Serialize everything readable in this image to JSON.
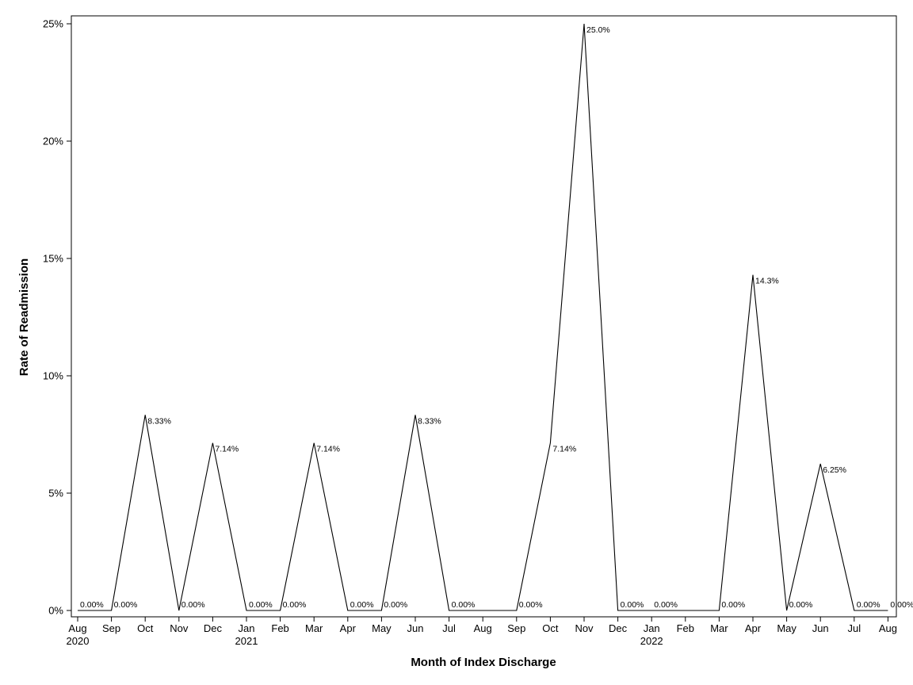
{
  "chart_data": {
    "type": "line",
    "title": "",
    "xlabel": "Month of Index Discharge",
    "ylabel": "Rate of Readmission",
    "ylim": [
      0,
      25
    ],
    "grid": false,
    "legend": "none",
    "line_color": "#000000",
    "x": [
      "Aug 2020",
      "Sep 2020",
      "Oct 2020",
      "Nov 2020",
      "Dec 2020",
      "Jan 2021",
      "Feb 2021",
      "Mar 2021",
      "Apr 2021",
      "May 2021",
      "Jun 2021",
      "Jul 2021",
      "Aug 2021",
      "Sep 2021",
      "Oct 2021",
      "Nov 2021",
      "Dec 2021",
      "Jan 2022",
      "Feb 2022",
      "Mar 2022",
      "Apr 2022",
      "May 2022",
      "Jun 2022",
      "Jul 2022",
      "Aug 2022"
    ],
    "x_tick_labels": [
      {
        "month": "Aug",
        "year": "2020"
      },
      {
        "month": "Sep",
        "year": ""
      },
      {
        "month": "Oct",
        "year": ""
      },
      {
        "month": "Nov",
        "year": ""
      },
      {
        "month": "Dec",
        "year": ""
      },
      {
        "month": "Jan",
        "year": "2021"
      },
      {
        "month": "Feb",
        "year": ""
      },
      {
        "month": "Mar",
        "year": ""
      },
      {
        "month": "Apr",
        "year": ""
      },
      {
        "month": "May",
        "year": ""
      },
      {
        "month": "Jun",
        "year": ""
      },
      {
        "month": "Jul",
        "year": ""
      },
      {
        "month": "Aug",
        "year": ""
      },
      {
        "month": "Sep",
        "year": ""
      },
      {
        "month": "Oct",
        "year": ""
      },
      {
        "month": "Nov",
        "year": ""
      },
      {
        "month": "Dec",
        "year": ""
      },
      {
        "month": "Jan",
        "year": "2022"
      },
      {
        "month": "Feb",
        "year": ""
      },
      {
        "month": "Mar",
        "year": ""
      },
      {
        "month": "Apr",
        "year": ""
      },
      {
        "month": "May",
        "year": ""
      },
      {
        "month": "Jun",
        "year": ""
      },
      {
        "month": "Jul",
        "year": ""
      },
      {
        "month": "Aug",
        "year": ""
      }
    ],
    "y_ticks": [
      0,
      5,
      10,
      15,
      20,
      25
    ],
    "y_tick_labels": [
      "0%",
      "5%",
      "10%",
      "15%",
      "20%",
      "25%"
    ],
    "points": [
      {
        "x": "Aug 2020",
        "y": 0,
        "label": "0.00%"
      },
      {
        "x": "Sep 2020",
        "y": 0,
        "label": "0.00%"
      },
      {
        "x": "Oct 2020",
        "y": 8.33,
        "label": "8.33%"
      },
      {
        "x": "Nov 2020",
        "y": 0,
        "label": "0.00%"
      },
      {
        "x": "Dec 2020",
        "y": 7.14,
        "label": "7.14%"
      },
      {
        "x": "Jan 2021",
        "y": 0,
        "label": "0.00%"
      },
      {
        "x": "Feb 2021",
        "y": 0,
        "label": "0.00%"
      },
      {
        "x": "Mar 2021",
        "y": 7.14,
        "label": "7.14%"
      },
      {
        "x": "Apr 2021",
        "y": 0,
        "label": "0.00%"
      },
      {
        "x": "May 2021",
        "y": 0,
        "label": "0.00%"
      },
      {
        "x": "Jun 2021",
        "y": 8.33,
        "label": "8.33%"
      },
      {
        "x": "Jul 2021",
        "y": 0,
        "label": "0.00%"
      },
      {
        "x": "Aug 2021",
        "y": 0,
        "label": ""
      },
      {
        "x": "Sep 2021",
        "y": 0,
        "label": "0.00%"
      },
      {
        "x": "Oct 2021",
        "y": 7.14,
        "label": "7.14%"
      },
      {
        "x": "Nov 2021",
        "y": 25.0,
        "label": "25.0%"
      },
      {
        "x": "Dec 2021",
        "y": 0,
        "label": "0.00%"
      },
      {
        "x": "Jan 2022",
        "y": 0,
        "label": "0.00%"
      },
      {
        "x": "Feb 2022",
        "y": 0,
        "label": ""
      },
      {
        "x": "Mar 2022",
        "y": 0,
        "label": "0.00%"
      },
      {
        "x": "Apr 2022",
        "y": 14.3,
        "label": "14.3%"
      },
      {
        "x": "May 2022",
        "y": 0,
        "label": "0.00%"
      },
      {
        "x": "Jun 2022",
        "y": 6.25,
        "label": "6.25%"
      },
      {
        "x": "Jul 2022",
        "y": 0,
        "label": "0.00%"
      },
      {
        "x": "Aug 2022",
        "y": 0,
        "label": "0.00%"
      }
    ]
  }
}
